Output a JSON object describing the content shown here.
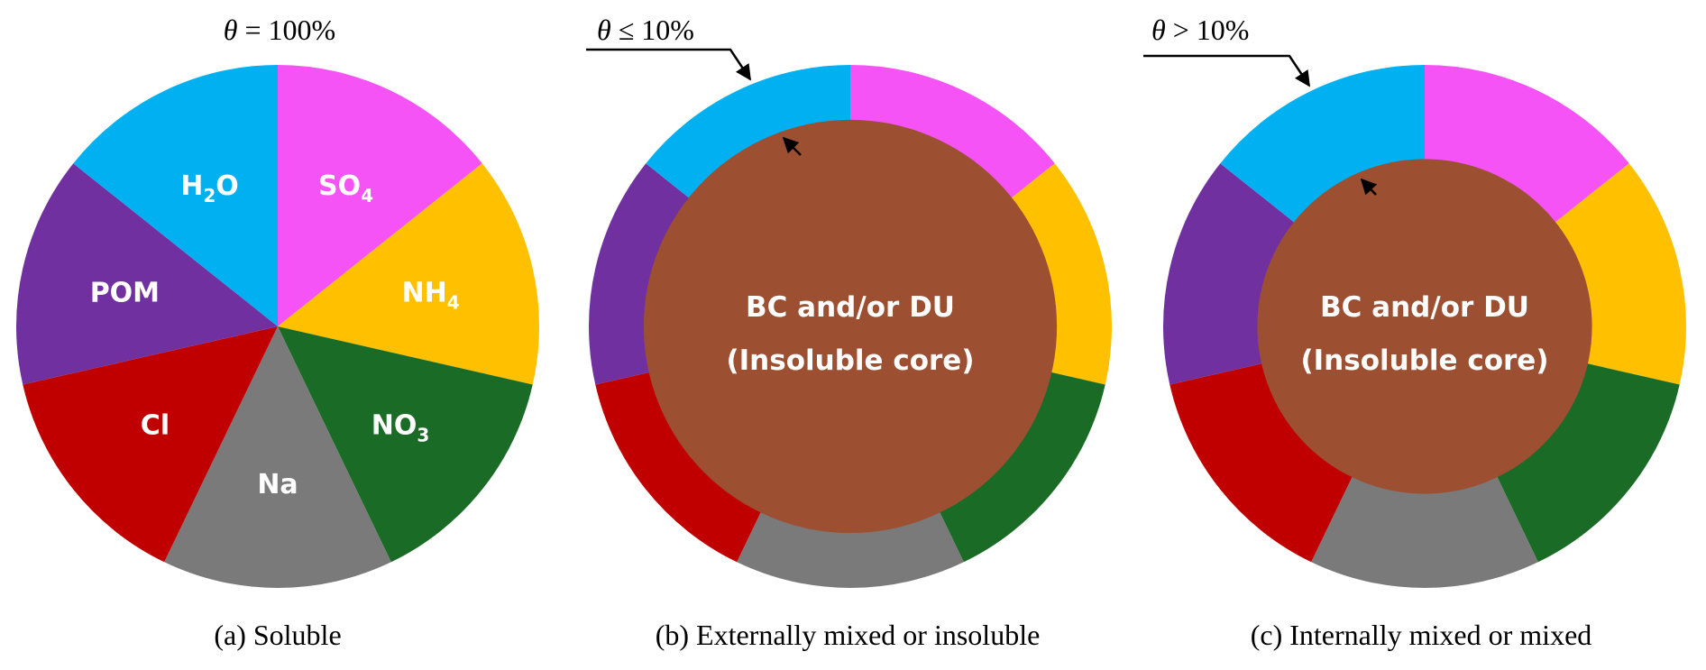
{
  "colors": {
    "SO4": "#F553F5",
    "NH4": "#FFC000",
    "NO3": "#1A6B25",
    "Na": "#7A7A7A",
    "Cl": "#C00000",
    "POM": "#7030A0",
    "H2O": "#00B0F0",
    "core": "#9C4F31"
  },
  "components": [
    {
      "key": "SO4",
      "base": "SO",
      "sub": "4"
    },
    {
      "key": "NH4",
      "base": "NH",
      "sub": "4"
    },
    {
      "key": "NO3",
      "base": "NO",
      "sub": "3"
    },
    {
      "key": "Na",
      "base": "Na",
      "sub": ""
    },
    {
      "key": "Cl",
      "base": "Cl",
      "sub": ""
    },
    {
      "key": "POM",
      "base": "POM",
      "sub": ""
    },
    {
      "key": "H2O",
      "base": "H",
      "sub": "2",
      "tail": "O"
    }
  ],
  "panels": [
    {
      "id": "a",
      "caption": "(a) Soluble",
      "theta_symbol": "θ",
      "theta_rest": " = 100%",
      "has_core": false
    },
    {
      "id": "b",
      "caption": "(b) Externally mixed or insoluble",
      "theta_symbol": "θ",
      "theta_rest": " ≤ 10%",
      "has_core": true,
      "core_fraction": 0.79,
      "core_line1": "BC and/or DU",
      "core_line2": "(Insoluble core)"
    },
    {
      "id": "c",
      "caption": "(c) Internally mixed or mixed",
      "theta_symbol": "θ",
      "theta_rest": " > 10%",
      "has_core": true,
      "core_fraction": 0.64,
      "core_line1": "BC and/or DU",
      "core_line2": "(Insoluble core)"
    }
  ]
}
